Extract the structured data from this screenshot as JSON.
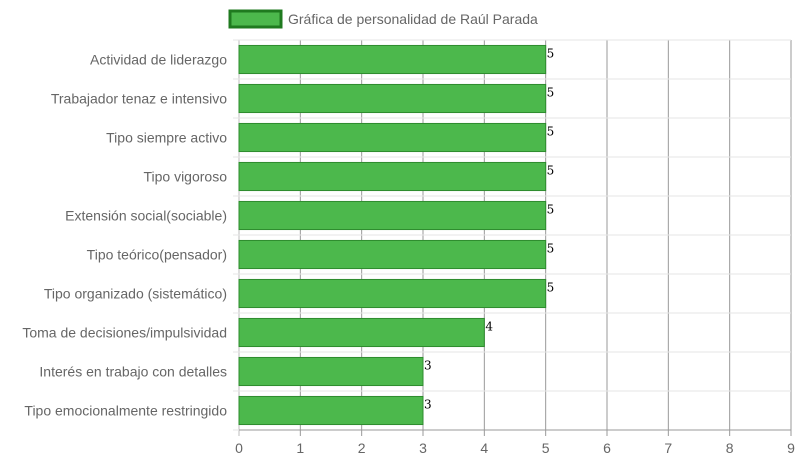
{
  "chart_data": {
    "type": "bar",
    "orientation": "horizontal",
    "categories": [
      "Actividad de liderazgo",
      "Trabajador tenaz e intensivo",
      "Tipo siempre activo",
      "Tipo vigoroso",
      "Extensión social(sociable)",
      "Tipo teórico(pensador)",
      "Tipo organizado (sistemático)",
      "Toma de decisiones/impulsividad",
      "Interés en trabajo con detalles",
      "Tipo emocionalmente restringido"
    ],
    "series": [
      {
        "name": "Gráfica de personalidad de Raúl Parada",
        "values": [
          5,
          5,
          5,
          5,
          5,
          5,
          5,
          4,
          3,
          3
        ],
        "color": "#4cb84c",
        "border_color": "#2e8b2e"
      }
    ],
    "xlim": [
      0,
      9
    ],
    "xticks": [
      0,
      1,
      2,
      3,
      4,
      5,
      6,
      7,
      8,
      9
    ],
    "grid": true,
    "legend_position": "top",
    "data_labels": true
  }
}
